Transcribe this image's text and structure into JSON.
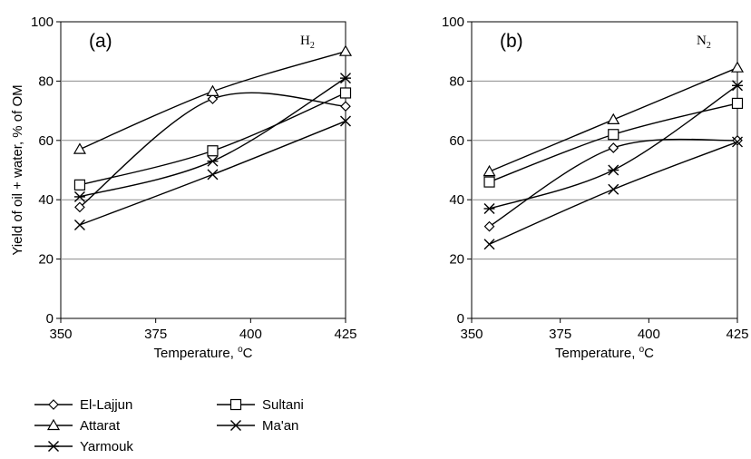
{
  "chart_data": [
    {
      "type": "line",
      "panel_label": "(a)",
      "gas": "H",
      "gas_subscript": "2",
      "xlabel_main": "Temperature, ",
      "xlabel_sup": "o",
      "xlabel_unit": "C",
      "ylabel": "Yield of oil + water, % of OM",
      "xlim": [
        350,
        425
      ],
      "ylim": [
        0,
        100
      ],
      "xticks": [
        350,
        375,
        400,
        425
      ],
      "yticks": [
        0,
        20,
        40,
        60,
        80,
        100
      ],
      "grid": "horizontal",
      "x": [
        355,
        390,
        425
      ],
      "series": [
        {
          "name": "El-Lajjun",
          "marker": "diamond",
          "values": [
            37.5,
            74,
            71.5
          ],
          "curve": "smooth"
        },
        {
          "name": "Sultani",
          "marker": "square",
          "values": [
            45,
            56.5,
            76
          ],
          "curve": "smooth"
        },
        {
          "name": "Attarat",
          "marker": "triangle",
          "values": [
            57,
            76.5,
            90
          ],
          "curve": "smooth"
        },
        {
          "name": "Ma'an",
          "marker": "x",
          "values": [
            31.5,
            48.5,
            66.5
          ],
          "curve": "smooth"
        },
        {
          "name": "Yarmouk",
          "marker": "star",
          "values": [
            41,
            53,
            81
          ],
          "curve": "smooth"
        }
      ]
    },
    {
      "type": "line",
      "panel_label": "(b)",
      "gas": "N",
      "gas_subscript": "2",
      "xlabel_main": "Temperature, ",
      "xlabel_sup": "o",
      "xlabel_unit": "C",
      "ylabel": "",
      "xlim": [
        350,
        425
      ],
      "ylim": [
        0,
        100
      ],
      "xticks": [
        350,
        375,
        400,
        425
      ],
      "yticks": [
        0,
        20,
        40,
        60,
        80,
        100
      ],
      "grid": "horizontal",
      "x": [
        355,
        390,
        425
      ],
      "series": [
        {
          "name": "El-Lajjun",
          "marker": "diamond",
          "values": [
            31,
            57.5,
            60
          ],
          "curve": "smooth"
        },
        {
          "name": "Sultani",
          "marker": "square",
          "values": [
            46,
            62,
            72.5
          ],
          "curve": "smooth"
        },
        {
          "name": "Attarat",
          "marker": "triangle",
          "values": [
            49.5,
            67,
            84.5
          ],
          "curve": "smooth"
        },
        {
          "name": "Ma'an",
          "marker": "x",
          "values": [
            25,
            43.5,
            59.5
          ],
          "curve": "smooth"
        },
        {
          "name": "Yarmouk",
          "marker": "star",
          "values": [
            37,
            50,
            78.5
          ],
          "curve": "smooth"
        }
      ]
    }
  ],
  "legend": {
    "placement": "bottom-left",
    "entries": [
      {
        "name": "El-Lajjun",
        "marker": "diamond"
      },
      {
        "name": "Sultani",
        "marker": "square"
      },
      {
        "name": "Attarat",
        "marker": "triangle"
      },
      {
        "name": "Ma'an",
        "marker": "x"
      },
      {
        "name": "Yarmouk",
        "marker": "star"
      }
    ]
  }
}
